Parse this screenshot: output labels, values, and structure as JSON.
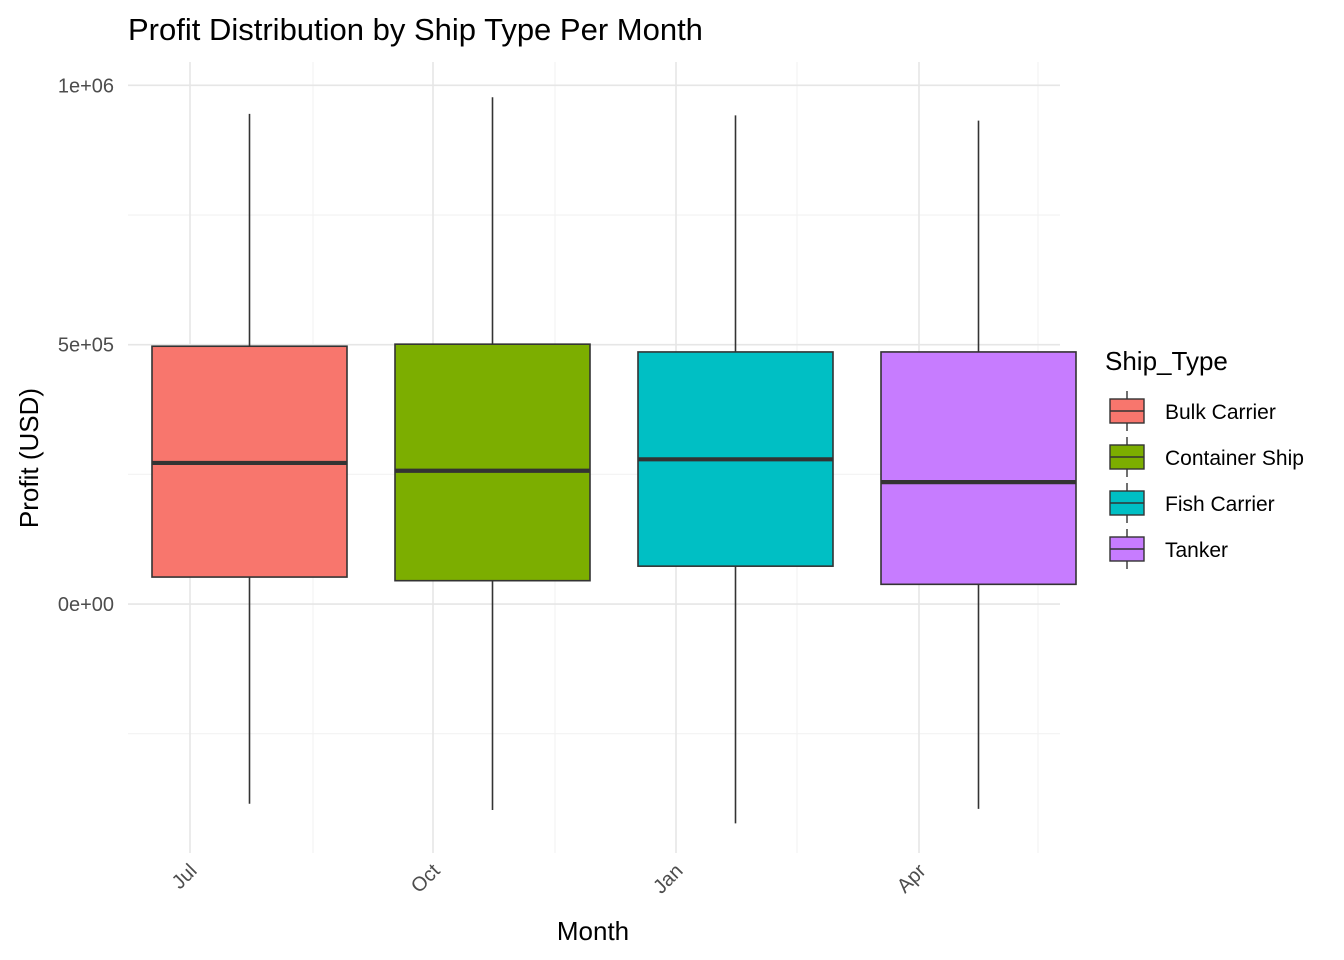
{
  "chart_data": {
    "type": "boxplot",
    "title": "Profit Distribution by Ship Type Per Month",
    "xlabel": "Month",
    "ylabel": "Profit (USD)",
    "x_ticks": [
      "Jul",
      "Oct",
      "Jan",
      "Apr"
    ],
    "y_ticks": [
      {
        "value": 0,
        "label": "0e+00"
      },
      {
        "value": 500000,
        "label": "5e+05"
      },
      {
        "value": 1000000,
        "label": "1e+06"
      }
    ],
    "ylim": [
      -480000,
      1045000
    ],
    "grid": true,
    "legend": {
      "title": "Ship_Type",
      "position": "right"
    },
    "series": [
      {
        "name": "Bulk Carrier",
        "color": "#F8766D",
        "whisker_low": -385000,
        "q1": 52000,
        "median": 272000,
        "q3": 497000,
        "whisker_high": 945000
      },
      {
        "name": "Container Ship",
        "color": "#7CAE00",
        "whisker_low": -397000,
        "q1": 45000,
        "median": 257000,
        "q3": 501000,
        "whisker_high": 977000
      },
      {
        "name": "Fish Carrier",
        "color": "#00BFC4",
        "whisker_low": -423000,
        "q1": 73000,
        "median": 279000,
        "q3": 486000,
        "whisker_high": 942000
      },
      {
        "name": "Tanker",
        "color": "#C77CFF",
        "whisker_low": -395000,
        "q1": 38000,
        "median": 235000,
        "q3": 486000,
        "whisker_high": 932000
      }
    ]
  }
}
